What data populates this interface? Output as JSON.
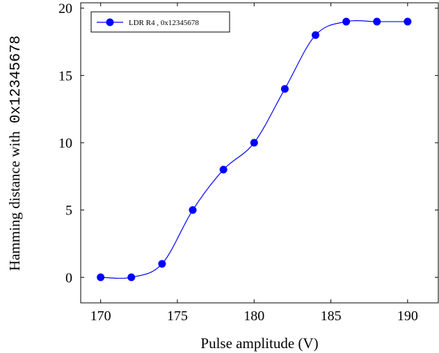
{
  "colors": {
    "series": "#0000ff",
    "axis": "#000000",
    "background": "#ffffff"
  },
  "chart_data": {
    "type": "line",
    "smooth": true,
    "marker": "circle",
    "xlabel": "Pulse amplitude (V)",
    "ylabel_text": "Hamming distance with",
    "ylabel_code": "0x12345678",
    "xlim": [
      168.7,
      192
    ],
    "ylim": [
      -1.9,
      20.4
    ],
    "xticks": [
      170,
      175,
      180,
      185,
      190
    ],
    "yticks": [
      0,
      5,
      10,
      15,
      20
    ],
    "grid": false,
    "legend_position": "top-left",
    "series": [
      {
        "name": "LDR R4 , 0x12345678",
        "x": [
          170,
          172,
          174,
          176,
          178,
          180,
          182,
          184,
          186,
          188,
          190
        ],
        "y": [
          0,
          0,
          1,
          5,
          8,
          10,
          14,
          18,
          19,
          19,
          19
        ]
      }
    ]
  }
}
